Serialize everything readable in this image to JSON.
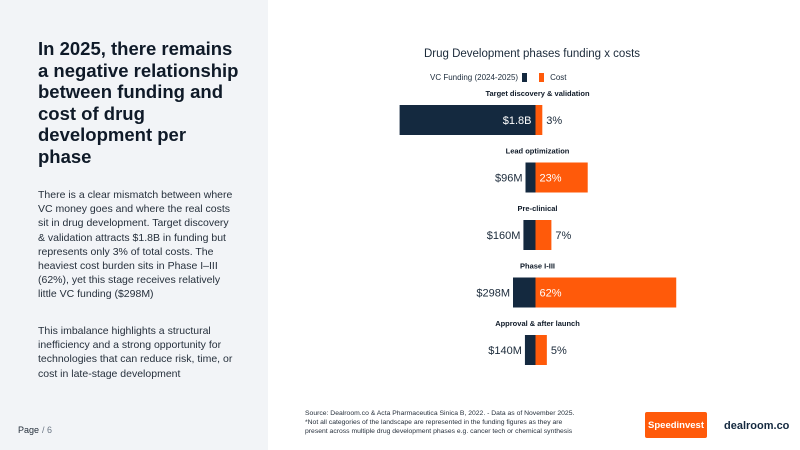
{
  "headline": "In 2025, there remains a negative relationship between funding and cost of drug development per phase",
  "paragraph1": "There is a clear mismatch between where VC money goes and where the real costs sit in drug development. Target discovery & validation attracts $1.8B in funding but represents only 3% of total costs. The heaviest cost burden sits in Phase I–III (62%), yet this stage receives relatively little VC funding ($298M)",
  "paragraph2": "This imbalance highlights a structural inefficiency and a strong opportunity for technologies that can reduce risk, time, or cost in late-stage development",
  "page": {
    "label": "Page",
    "number": "/ 6"
  },
  "footer": {
    "source_line1": "Source:  Dealroom.co & Acta Pharmaceutica Sinica B, 2022. - Data as of November 2025.",
    "source_line2": "*Not all categories of the landscape are represented in the funding figures as they are",
    "source_line3": "present across multiple drug development phases e.g. cancer tech  or chemical synthesis",
    "speedinvest_logo": "Speedinvest",
    "dealroom_logo": "dealroom.co"
  },
  "colors": {
    "funding": "#14293f",
    "cost": "#ff5a0a"
  },
  "chart_data": {
    "type": "bar",
    "orientation": "diverging-horizontal",
    "title": "Drug Development phases funding x costs",
    "legend": {
      "funding": "VC Funding (2024-2025)",
      "cost": "Cost",
      "position": "top"
    },
    "categories": [
      "Target discovery & validation",
      "Lead optimization",
      "Pre-clinical",
      "Phase I-III",
      "Approval & after launch"
    ],
    "series": [
      {
        "name": "VC Funding (2024-2025)",
        "unit": "USD M",
        "values": [
          1800,
          96,
          160,
          298,
          140
        ],
        "labels": [
          "$1.8B",
          "$96M",
          "$160M",
          "$298M",
          "$140M"
        ]
      },
      {
        "name": "Cost",
        "unit": "% of total",
        "values": [
          3,
          23,
          7,
          62,
          5
        ],
        "labels": [
          "3%",
          "23%",
          "7%",
          "62%",
          "5%"
        ]
      }
    ]
  }
}
